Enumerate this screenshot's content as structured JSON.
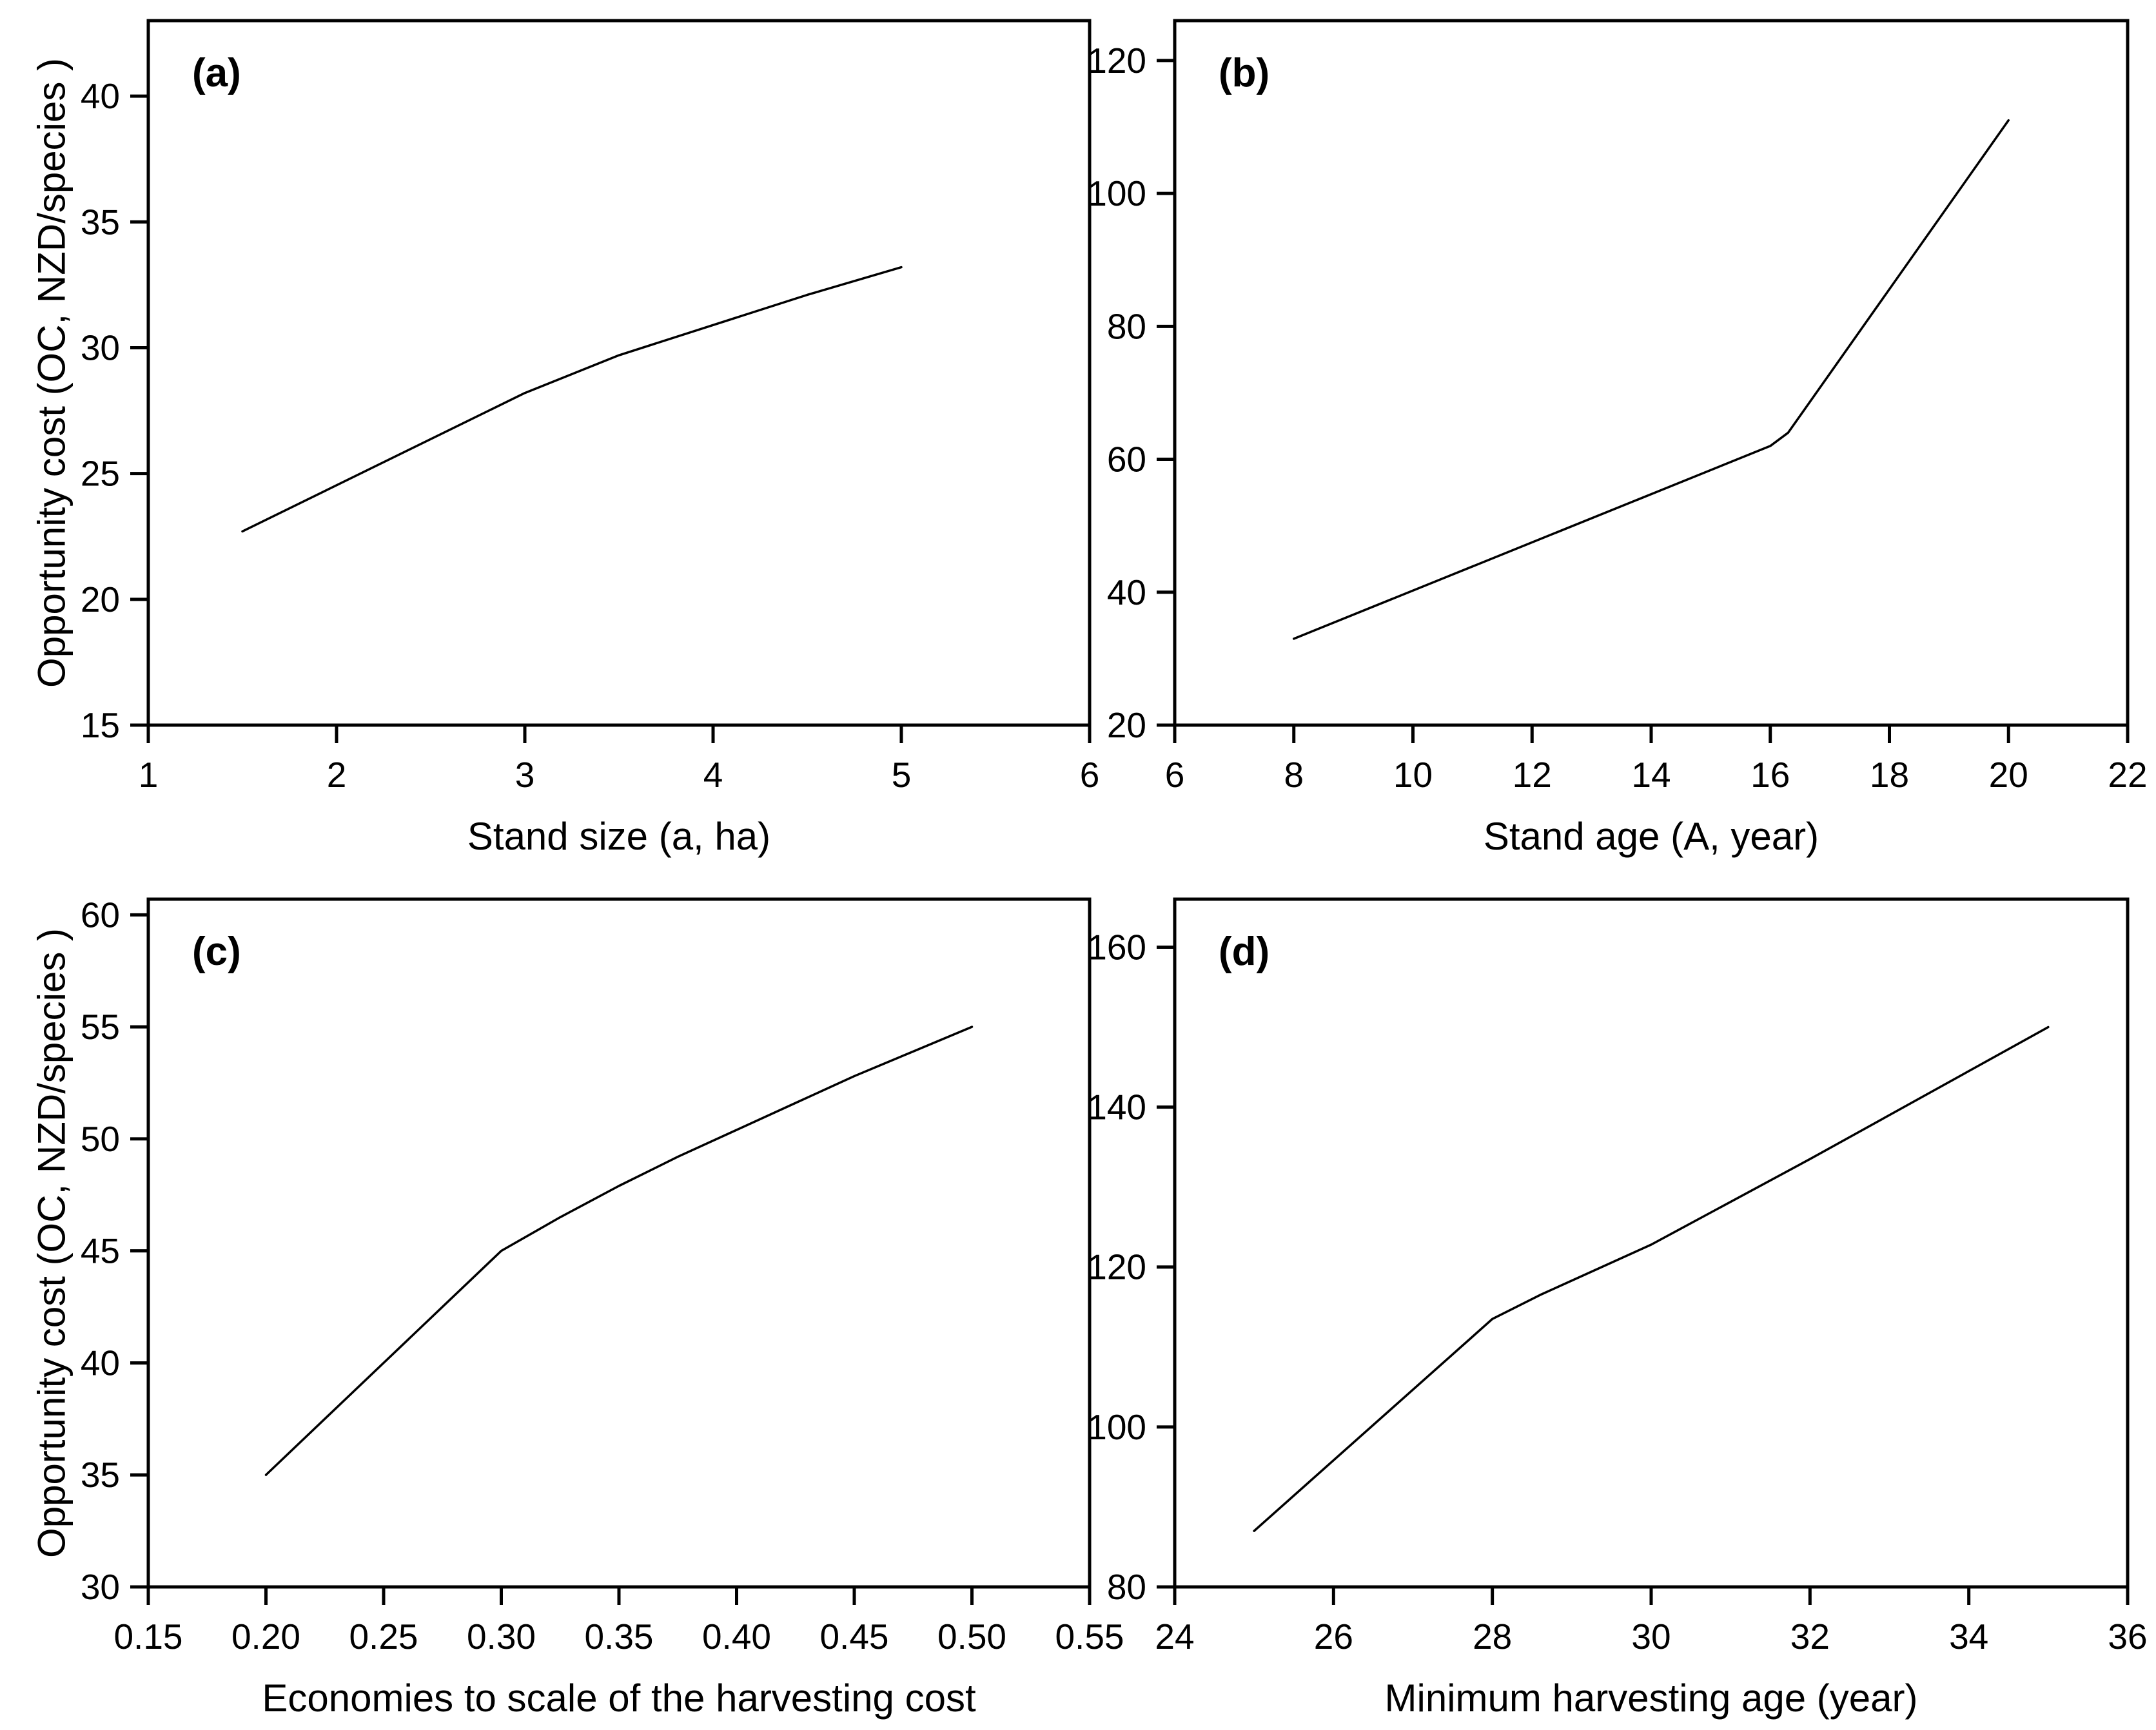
{
  "page": {
    "background": "#ffffff",
    "foreground": "#000000"
  },
  "chart_data": [
    {
      "id": "a",
      "type": "line",
      "panel_label": "(a)",
      "xlabel": "Stand size (a, ha)",
      "ylabel": "Opportunity cost (OC, NZD/species )",
      "xlim": [
        1,
        6
      ],
      "ylim": [
        15,
        43
      ],
      "grid": false,
      "legend": "none",
      "xticks": [
        {
          "v": 1,
          "label": "1"
        },
        {
          "v": 2,
          "label": "2"
        },
        {
          "v": 3,
          "label": "3"
        },
        {
          "v": 4,
          "label": "4"
        },
        {
          "v": 5,
          "label": "5"
        },
        {
          "v": 6,
          "label": "6"
        }
      ],
      "yticks": [
        {
          "v": 15,
          "label": "15"
        },
        {
          "v": 20,
          "label": "20"
        },
        {
          "v": 25,
          "label": "25"
        },
        {
          "v": 30,
          "label": "30"
        },
        {
          "v": 35,
          "label": "35"
        },
        {
          "v": 40,
          "label": "40"
        }
      ],
      "series": [
        {
          "name": "opportunity_cost_vs_stand_size",
          "color": "#000000",
          "points": [
            [
              1.5,
              22.7
            ],
            [
              3,
              28.2
            ],
            [
              3.5,
              29.7
            ],
            [
              4,
              30.9
            ],
            [
              4.5,
              32.1
            ],
            [
              5,
              33.2
            ]
          ]
        }
      ]
    },
    {
      "id": "b",
      "type": "line",
      "panel_label": "(b)",
      "xlabel": "Stand age (A, year)",
      "ylabel": "",
      "xlim": [
        6,
        22
      ],
      "ylim": [
        20,
        126
      ],
      "grid": false,
      "legend": "none",
      "xticks": [
        {
          "v": 6,
          "label": "6"
        },
        {
          "v": 8,
          "label": "8"
        },
        {
          "v": 10,
          "label": "10"
        },
        {
          "v": 12,
          "label": "12"
        },
        {
          "v": 14,
          "label": "14"
        },
        {
          "v": 16,
          "label": "16"
        },
        {
          "v": 18,
          "label": "18"
        },
        {
          "v": 20,
          "label": "20"
        },
        {
          "v": 22,
          "label": "22"
        }
      ],
      "yticks": [
        {
          "v": 20,
          "label": "20"
        },
        {
          "v": 40,
          "label": "40"
        },
        {
          "v": 60,
          "label": "60"
        },
        {
          "v": 80,
          "label": "80"
        },
        {
          "v": 100,
          "label": "100"
        },
        {
          "v": 120,
          "label": "120"
        }
      ],
      "series": [
        {
          "name": "opportunity_cost_vs_stand_age",
          "color": "#000000",
          "points": [
            [
              8,
              33
            ],
            [
              16,
              62
            ],
            [
              16.3,
              64
            ],
            [
              20,
              111
            ]
          ]
        }
      ]
    },
    {
      "id": "c",
      "type": "line",
      "panel_label": "(c)",
      "xlabel": "Economies to scale of the harvesting cost",
      "ylabel": "Opportunity cost (OC, NZD/species )",
      "xlim": [
        0.15,
        0.55
      ],
      "ylim": [
        30,
        60.7
      ],
      "grid": false,
      "legend": "none",
      "xticks": [
        {
          "v": 0.15,
          "label": "0.15"
        },
        {
          "v": 0.2,
          "label": "0.20"
        },
        {
          "v": 0.25,
          "label": "0.25"
        },
        {
          "v": 0.3,
          "label": "0.30"
        },
        {
          "v": 0.35,
          "label": "0.35"
        },
        {
          "v": 0.4,
          "label": "0.40"
        },
        {
          "v": 0.45,
          "label": "0.45"
        },
        {
          "v": 0.5,
          "label": "0.50"
        },
        {
          "v": 0.55,
          "label": "0.55"
        }
      ],
      "yticks": [
        {
          "v": 30,
          "label": "30"
        },
        {
          "v": 35,
          "label": "35"
        },
        {
          "v": 40,
          "label": "40"
        },
        {
          "v": 45,
          "label": "45"
        },
        {
          "v": 50,
          "label": "50"
        },
        {
          "v": 55,
          "label": "55"
        },
        {
          "v": 60,
          "label": "60"
        }
      ],
      "series": [
        {
          "name": "opportunity_cost_vs_economies_to_scale",
          "color": "#000000",
          "points": [
            [
              0.2,
              35
            ],
            [
              0.3,
              45
            ],
            [
              0.325,
              46.5
            ],
            [
              0.35,
              47.9
            ],
            [
              0.375,
              49.2
            ],
            [
              0.4,
              50.4
            ],
            [
              0.425,
              51.6
            ],
            [
              0.45,
              52.8
            ],
            [
              0.475,
              53.9
            ],
            [
              0.5,
              55
            ]
          ]
        }
      ]
    },
    {
      "id": "d",
      "type": "line",
      "panel_label": "(d)",
      "xlabel": "Minimum harvesting age (year)",
      "ylabel": "",
      "xlim": [
        24,
        36
      ],
      "ylim": [
        80,
        166
      ],
      "grid": false,
      "legend": "none",
      "xticks": [
        {
          "v": 24,
          "label": "24"
        },
        {
          "v": 26,
          "label": "26"
        },
        {
          "v": 28,
          "label": "28"
        },
        {
          "v": 30,
          "label": "30"
        },
        {
          "v": 32,
          "label": "32"
        },
        {
          "v": 34,
          "label": "34"
        },
        {
          "v": 36,
          "label": "36"
        }
      ],
      "yticks": [
        {
          "v": 80,
          "label": "80"
        },
        {
          "v": 100,
          "label": "100"
        },
        {
          "v": 120,
          "label": "120"
        },
        {
          "v": 140,
          "label": "140"
        },
        {
          "v": 160,
          "label": "160"
        }
      ],
      "series": [
        {
          "name": "opportunity_cost_vs_min_harvesting_age",
          "color": "#000000",
          "points": [
            [
              25,
              87
            ],
            [
              28,
              113.5
            ],
            [
              28.6,
              116.5
            ],
            [
              30,
              122.8
            ],
            [
              32,
              133.5
            ],
            [
              35,
              150
            ]
          ]
        }
      ]
    }
  ]
}
